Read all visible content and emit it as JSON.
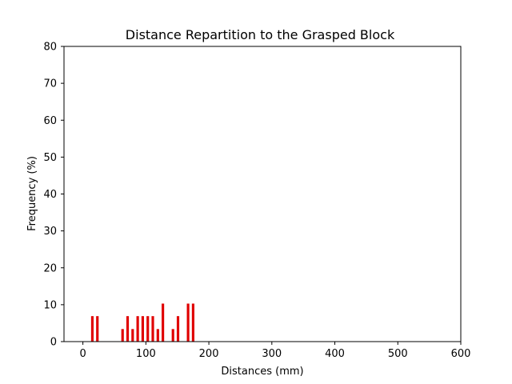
{
  "chart_data": {
    "type": "bar",
    "title": "Distance Repartition to the Grasped Block",
    "xlabel": "Distances (mm)",
    "ylabel": "Frequency (%)",
    "xlim": [
      -30,
      600
    ],
    "ylim": [
      0,
      80
    ],
    "xticks": [
      0,
      100,
      200,
      300,
      400,
      500,
      600
    ],
    "yticks": [
      0,
      10,
      20,
      30,
      40,
      50,
      60,
      70,
      80
    ],
    "bar_width": 4,
    "bar_color": "#e00000",
    "grid": false,
    "x": [
      15,
      23,
      63,
      71,
      79,
      87,
      95,
      103,
      111,
      119,
      127,
      143,
      151,
      167,
      175
    ],
    "values": [
      6.9,
      6.9,
      3.4,
      6.9,
      3.4,
      6.9,
      6.9,
      6.9,
      6.9,
      3.4,
      10.3,
      3.4,
      6.9,
      10.3,
      10.3
    ]
  }
}
